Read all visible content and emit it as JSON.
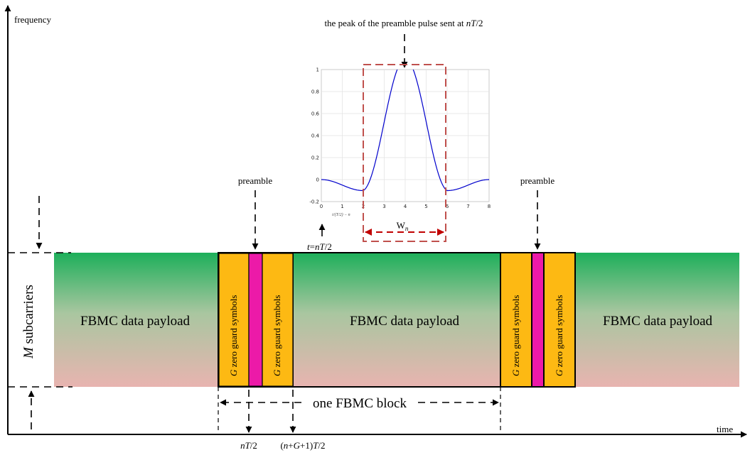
{
  "axes": {
    "y_label": "frequency",
    "x_label": "time"
  },
  "labels": {
    "preamble_left": "preamble",
    "preamble_right": "preamble",
    "peak_annotation": {
      "pre": "the peak of the preamble pulse sent at ",
      "italic": "nT",
      "post": "/2"
    },
    "t_label": {
      "italic_t": "t",
      "eq": "=",
      "italic_nt": "nT",
      "post": "/2"
    },
    "m_subcarriers": {
      "italic": "M",
      "post": " subcarriers"
    },
    "payload_1": "FBMC data payload",
    "payload_2": "FBMC data payload",
    "payload_3": "FBMC data payload",
    "guard": {
      "italic": "G",
      "post": " zero guard symbols"
    },
    "one_block": "one FBMC block",
    "bottom_nt2": {
      "italic": "nT",
      "post": "/2"
    },
    "bottom_ngt2": {
      "pre": "(",
      "italic1": "n",
      "mid1": "+",
      "italic2": "G",
      "mid2": "+1)",
      "italic3": "T",
      "post": "/2"
    },
    "wn": {
      "main": "W",
      "sub": "n"
    }
  },
  "inset_plot": {
    "xlabel": "t/(T/2) − n",
    "xticks": [
      "0",
      "1",
      "2",
      "3",
      "4",
      "5",
      "6",
      "7",
      "8"
    ],
    "yticks": [
      "1",
      "0.8",
      "0.6",
      "0.4",
      "0.2",
      "0",
      "-0.2"
    ]
  },
  "colors": {
    "green_top": "#1daf5a",
    "pink_bottom": "#e8b4b0",
    "guard_orange": "#fdb913",
    "preamble_magenta": "#ec1aa8",
    "window_red": "#c0504d",
    "arrow_red": "#c00000",
    "pulse_blue": "#0000cc"
  }
}
